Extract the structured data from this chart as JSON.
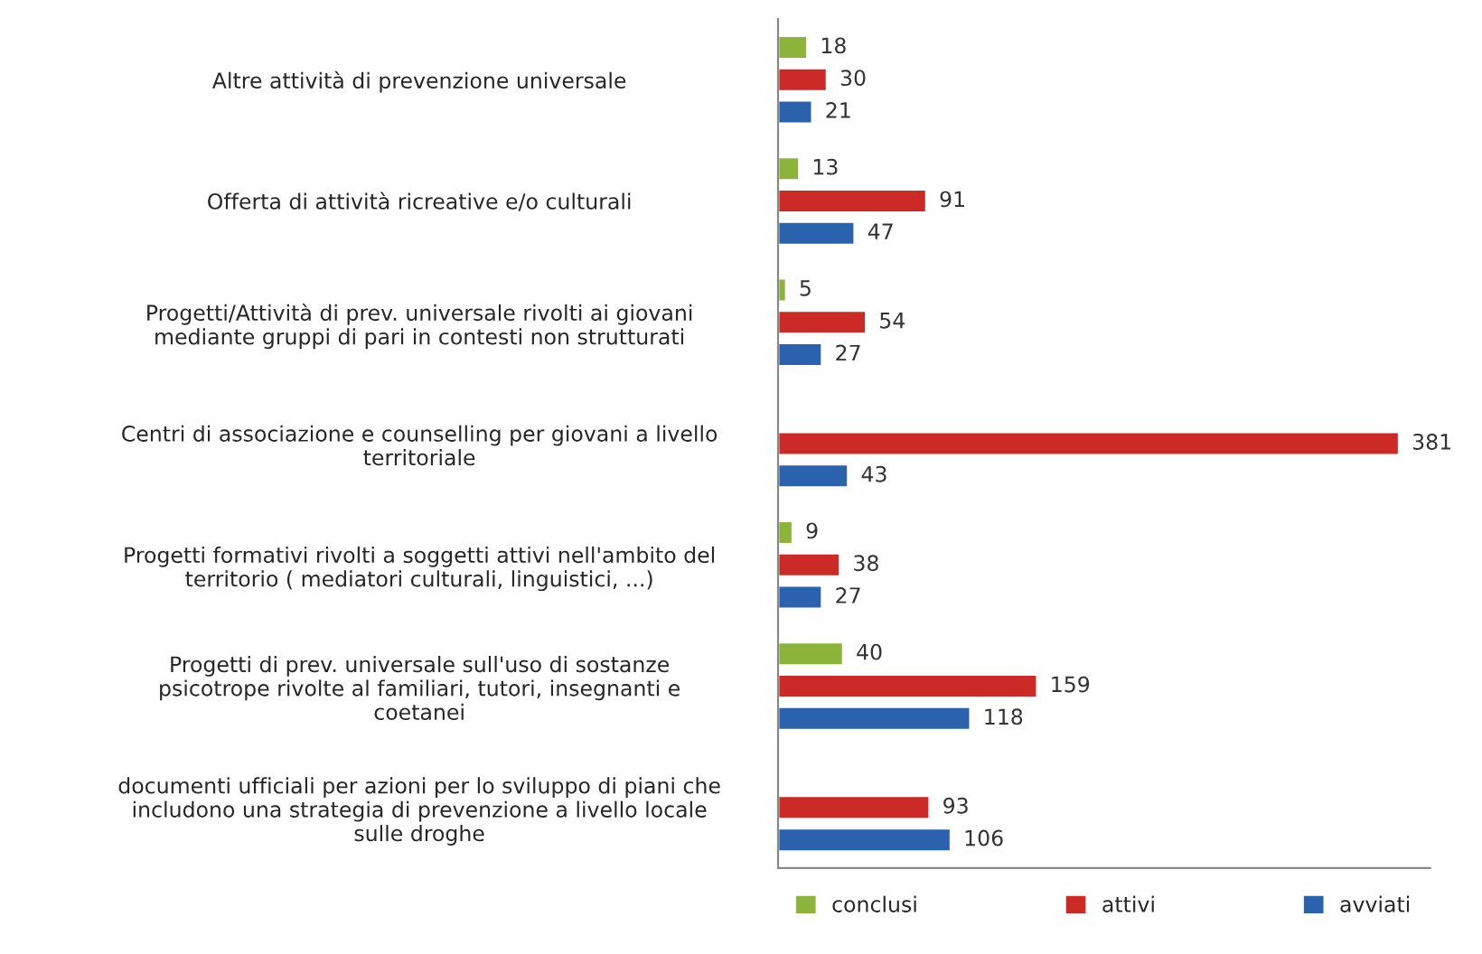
{
  "chart_data": {
    "type": "bar",
    "orientation": "horizontal",
    "categories": [
      "Altre attività di prevenzione universale",
      "Offerta di attività ricreative e/o culturali",
      "Progetti/Attività di prev. universale rivolti ai giovani\nmediante gruppi di pari in contesti non strutturati",
      "Centri di associazione e counselling per giovani a livello\nterritoriale",
      "Progetti formativi rivolti a soggetti attivi nell'ambito del\nterritorio ( mediatori culturali, linguistici, ...)",
      "Progetti di prev. universale sull'uso di sostanze\npsicotrope rivolte al familiari, tutori, insegnanti e\ncoetanei",
      "documenti ufficiali per azioni per lo sviluppo di piani che\nincludono una strategia di prevenzione a livello locale\nsulle droghe"
    ],
    "series": [
      {
        "name": "conclusi",
        "color": "#8db43a",
        "values": [
          18,
          13,
          5,
          null,
          9,
          40,
          null
        ]
      },
      {
        "name": "attivi",
        "color": "#cc2a26",
        "values": [
          30,
          91,
          54,
          381,
          38,
          159,
          93
        ]
      },
      {
        "name": "avviati",
        "color": "#2a62ad",
        "values": [
          21,
          47,
          27,
          43,
          27,
          118,
          106
        ]
      }
    ],
    "data_labels": true,
    "legend": "bottom"
  }
}
